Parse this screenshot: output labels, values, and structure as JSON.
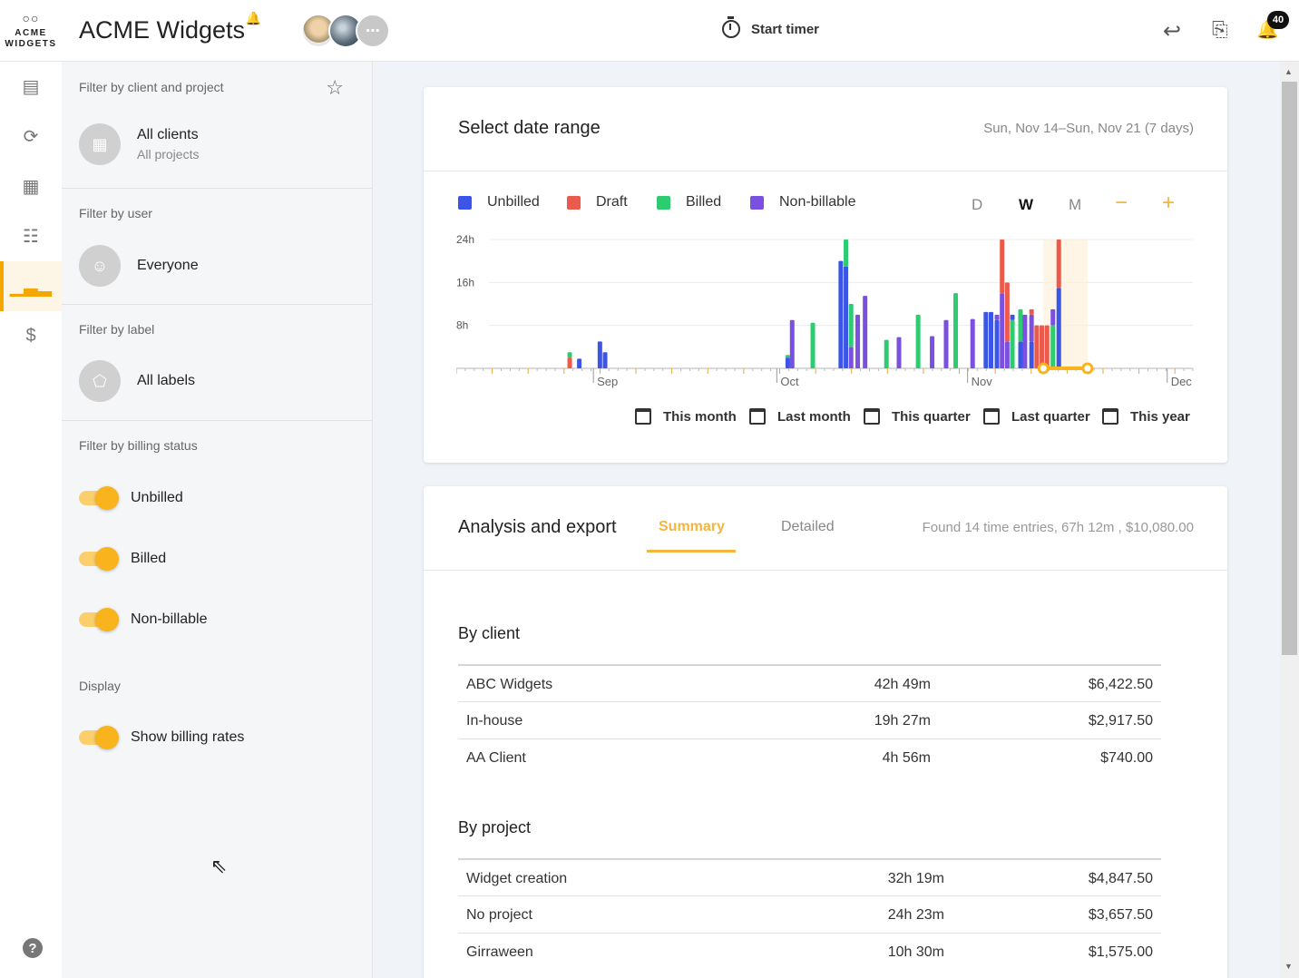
{
  "app": {
    "logo_line1": "ACME",
    "logo_line2": "WIDGETS",
    "company": "ACME Widgets",
    "more_label": "⋯",
    "timer_label": "Start timer",
    "notification_count": "40",
    "accent": "#f4b63a"
  },
  "filters": {
    "client_header": "Filter by client and project",
    "client_value": "All clients",
    "project_value": "All projects",
    "user_header": "Filter by user",
    "user_value": "Everyone",
    "label_header": "Filter by label",
    "label_value": "All labels",
    "billing_header": "Filter by billing status",
    "billing_toggles": [
      "Unbilled",
      "Billed",
      "Non-billable"
    ],
    "display_header": "Display",
    "display_toggle": "Show billing rates"
  },
  "date_range": {
    "title": "Select date range",
    "range": "Sun, Nov 14–Sun, Nov 21 (7 days)",
    "granularity": [
      "D",
      "W",
      "M"
    ],
    "granularity_selected": "W",
    "zoom_out": "−",
    "zoom_in": "+",
    "shortcuts": [
      "This month",
      "Last month",
      "This quarter",
      "Last quarter",
      "This year"
    ]
  },
  "chart_data": {
    "type": "bar",
    "legend": [
      {
        "name": "Unbilled",
        "color": "#3b55e6"
      },
      {
        "name": "Draft",
        "color": "#eb5a4a"
      },
      {
        "name": "Billed",
        "color": "#2ecc71"
      },
      {
        "name": "Non-billable",
        "color": "#7b4fe0"
      }
    ],
    "y_ticks": [
      "24h",
      "16h",
      "8h"
    ],
    "ylim": [
      0,
      24
    ],
    "month_labels": [
      "Sep",
      "Oct",
      "Nov",
      "Dec"
    ],
    "bars": [
      {
        "x": 0.154,
        "s": [
          [
            2,
            1
          ],
          [
            1,
            2
          ]
        ]
      },
      {
        "x": 0.167,
        "s": [
          [
            1.8,
            0
          ]
        ]
      },
      {
        "x": 0.195,
        "s": [
          [
            5,
            0
          ]
        ]
      },
      {
        "x": 0.202,
        "s": [
          [
            3,
            0
          ]
        ]
      },
      {
        "x": 0.45,
        "s": [
          [
            2,
            0
          ],
          [
            0.5,
            2
          ]
        ]
      },
      {
        "x": 0.456,
        "s": [
          [
            9,
            3
          ]
        ]
      },
      {
        "x": 0.484,
        "s": [
          [
            8.5,
            2
          ]
        ]
      },
      {
        "x": 0.522,
        "s": [
          [
            20,
            0
          ]
        ]
      },
      {
        "x": 0.529,
        "s": [
          [
            19,
            0
          ],
          [
            5,
            2
          ]
        ]
      },
      {
        "x": 0.536,
        "s": [
          [
            4,
            3
          ],
          [
            8,
            2
          ]
        ]
      },
      {
        "x": 0.545,
        "s": [
          [
            10,
            3
          ]
        ]
      },
      {
        "x": 0.555,
        "s": [
          [
            13.5,
            3
          ]
        ]
      },
      {
        "x": 0.584,
        "s": [
          [
            5.3,
            2
          ]
        ]
      },
      {
        "x": 0.601,
        "s": [
          [
            5.8,
            3
          ]
        ]
      },
      {
        "x": 0.627,
        "s": [
          [
            10,
            2
          ]
        ]
      },
      {
        "x": 0.646,
        "s": [
          [
            6,
            3
          ]
        ]
      },
      {
        "x": 0.665,
        "s": [
          [
            9,
            3
          ]
        ]
      },
      {
        "x": 0.678,
        "s": [
          [
            14,
            2
          ]
        ]
      },
      {
        "x": 0.701,
        "s": [
          [
            9.2,
            3
          ]
        ]
      },
      {
        "x": 0.719,
        "s": [
          [
            10.5,
            0
          ]
        ]
      },
      {
        "x": 0.726,
        "s": [
          [
            10.5,
            0
          ]
        ]
      },
      {
        "x": 0.734,
        "s": [
          [
            9,
            0
          ],
          [
            1,
            3
          ]
        ]
      },
      {
        "x": 0.741,
        "s": [
          [
            14,
            3
          ],
          [
            10,
            1
          ]
        ]
      },
      {
        "x": 0.748,
        "s": [
          [
            5,
            3
          ],
          [
            11,
            1
          ]
        ]
      },
      {
        "x": 0.755,
        "s": [
          [
            9,
            2
          ],
          [
            1,
            0
          ]
        ]
      },
      {
        "x": 0.766,
        "s": [
          [
            5,
            0
          ],
          [
            6,
            2
          ]
        ]
      },
      {
        "x": 0.772,
        "s": [
          [
            10,
            3
          ]
        ]
      },
      {
        "x": 0.781,
        "s": [
          [
            5,
            0
          ],
          [
            5,
            3
          ],
          [
            1,
            1
          ]
        ]
      },
      {
        "x": 0.788,
        "s": [
          [
            8,
            1
          ]
        ]
      },
      {
        "x": 0.795,
        "s": [
          [
            8,
            1
          ]
        ]
      },
      {
        "x": 0.802,
        "s": [
          [
            8,
            1
          ]
        ]
      },
      {
        "x": 0.81,
        "s": [
          [
            8,
            2
          ],
          [
            3,
            3
          ]
        ]
      },
      {
        "x": 0.818,
        "s": [
          [
            15,
            0
          ],
          [
            9,
            1
          ]
        ]
      }
    ],
    "selection": [
      0.797,
      0.857
    ]
  },
  "analysis": {
    "title": "Analysis and export",
    "tabs": [
      "Summary",
      "Detailed"
    ],
    "selected_tab": "Summary",
    "found": "Found 14 time entries, 67h 12m , $10,080.00",
    "by_client_title": "By client",
    "by_client": [
      {
        "name": "ABC Widgets",
        "hours": "42h 49m",
        "amount": "$6,422.50"
      },
      {
        "name": "In-house",
        "hours": "19h 27m",
        "amount": "$2,917.50"
      },
      {
        "name": "AA Client",
        "hours": "4h 56m",
        "amount": "$740.00"
      }
    ],
    "by_project_title": "By project",
    "by_project": [
      {
        "name": "Widget creation",
        "hours": "32h 19m",
        "amount": "$4,847.50"
      },
      {
        "name": "No project",
        "hours": "24h 23m",
        "amount": "$3,657.50"
      },
      {
        "name": "Girraween",
        "hours": "10h 30m",
        "amount": "$1,575.00"
      }
    ]
  }
}
